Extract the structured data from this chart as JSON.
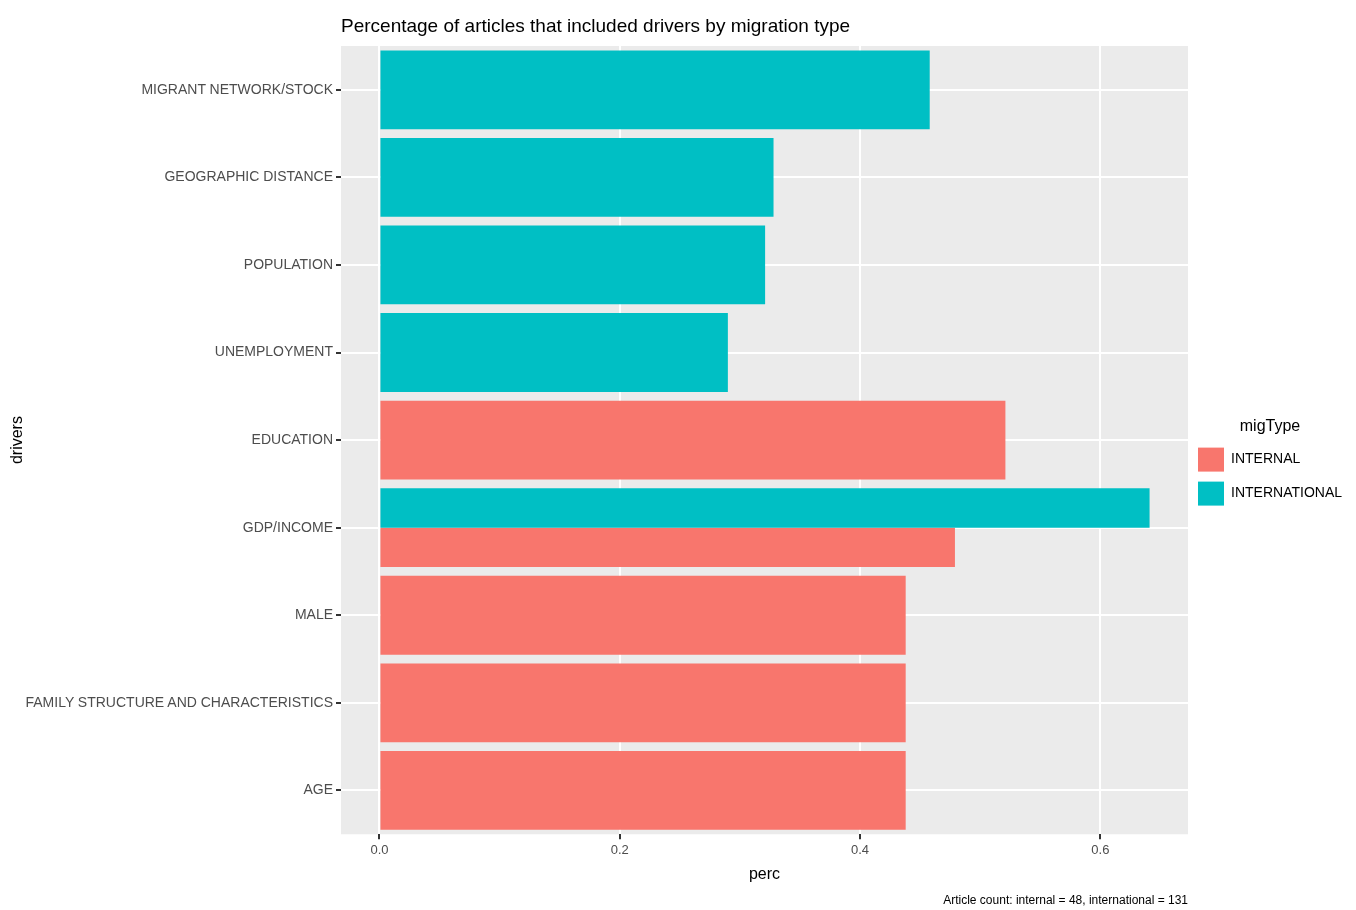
{
  "chart_data": {
    "type": "bar",
    "orientation": "horizontal",
    "title": "Percentage of articles that included drivers by migration type",
    "xlabel": "perc",
    "ylabel": "drivers",
    "legend_title": "migType",
    "legend": "right",
    "grid": true,
    "categories": [
      "MIGRANT NETWORK/STOCK",
      "GEOGRAPHIC DISTANCE",
      "POPULATION",
      "UNEMPLOYMENT",
      "EDUCATION",
      "GDP/INCOME",
      "MALE",
      "FAMILY STRUCTURE AND CHARACTERISTICS",
      "AGE"
    ],
    "series": [
      {
        "name": "INTERNAL",
        "color": "#f8766d",
        "values": [
          null,
          null,
          null,
          null,
          0.521,
          0.479,
          0.438,
          0.438,
          0.438
        ]
      },
      {
        "name": "INTERNATIONAL",
        "color": "#00bfc4",
        "values": [
          0.458,
          0.328,
          0.321,
          0.29,
          null,
          0.641,
          null,
          null,
          null
        ]
      }
    ],
    "xlim": [
      -0.032,
      0.673
    ],
    "xticks": [
      {
        "value": 0,
        "label": "0.0"
      },
      {
        "value": 0.2,
        "label": "0.2"
      },
      {
        "value": 0.4,
        "label": "0.4"
      },
      {
        "value": 0.6,
        "label": "0.6"
      }
    ],
    "annotations": [
      "Article count: internal = 48, international = 131"
    ]
  }
}
